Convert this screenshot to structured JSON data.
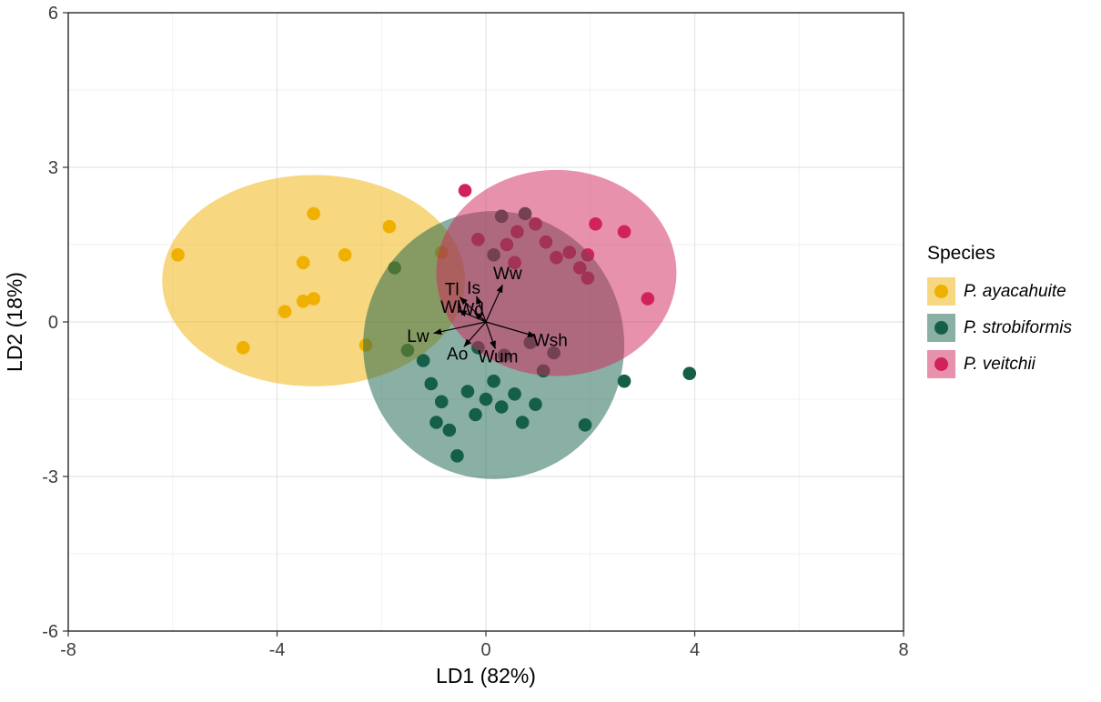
{
  "chart_data": {
    "type": "scatter",
    "title": "",
    "xlabel": "LD1 (82%)",
    "ylabel": "LD2 (18%)",
    "xlim": [
      -8,
      8
    ],
    "ylim": [
      -6,
      6
    ],
    "x_ticks": [
      -8,
      -4,
      0,
      4,
      8
    ],
    "y_ticks": [
      -6,
      -3,
      0,
      3,
      6
    ],
    "x_minor_ticks": [
      -6,
      -2,
      2,
      6
    ],
    "y_minor_ticks": [
      -4.5,
      -1.5,
      1.5,
      4.5
    ],
    "grid": true,
    "legend_position": "right",
    "legend_title": "Species",
    "series": [
      {
        "id": "ayacahuite",
        "name": "P. ayacahuite",
        "point_color": "#EFB000",
        "ellipse": {
          "cx": -3.3,
          "cy": 0.8,
          "rx": 2.9,
          "ry": 2.05
        },
        "points": [
          [
            -5.9,
            1.3
          ],
          [
            -4.65,
            -0.5
          ],
          [
            -3.85,
            0.2
          ],
          [
            -3.5,
            0.4
          ],
          [
            -3.3,
            0.45
          ],
          [
            -3.5,
            1.15
          ],
          [
            -3.3,
            2.1
          ],
          [
            -2.7,
            1.3
          ],
          [
            -1.85,
            1.85
          ],
          [
            -2.3,
            -0.45
          ],
          [
            -0.85,
            1.35
          ]
        ]
      },
      {
        "id": "strobiformis",
        "name": "P. strobiformis",
        "point_color": "#155F49",
        "ellipse": {
          "cx": 0.15,
          "cy": -0.45,
          "rx": 2.5,
          "ry": 2.6
        },
        "points": [
          [
            -1.75,
            1.05
          ],
          [
            -1.5,
            -0.55
          ],
          [
            -1.2,
            -0.75
          ],
          [
            -1.05,
            -1.2
          ],
          [
            -0.85,
            -1.55
          ],
          [
            -0.95,
            -1.95
          ],
          [
            -0.7,
            -2.1
          ],
          [
            -0.55,
            -2.6
          ],
          [
            -0.35,
            -1.35
          ],
          [
            -0.2,
            -1.8
          ],
          [
            0.0,
            -1.5
          ],
          [
            0.15,
            -1.15
          ],
          [
            0.3,
            -1.65
          ],
          [
            0.55,
            -1.4
          ],
          [
            0.7,
            -1.95
          ],
          [
            0.95,
            -1.6
          ],
          [
            1.1,
            -0.95
          ],
          [
            1.3,
            -0.6
          ],
          [
            1.9,
            -2.0
          ],
          [
            2.65,
            -1.15
          ],
          [
            3.9,
            -1.0
          ],
          [
            0.35,
            -0.65
          ],
          [
            -0.15,
            -0.5
          ],
          [
            0.85,
            -0.4
          ],
          [
            0.3,
            2.05
          ],
          [
            0.75,
            2.1
          ],
          [
            0.15,
            1.3
          ]
        ]
      },
      {
        "id": "veitchii",
        "name": "P. veitchii",
        "point_color": "#D1235A",
        "ellipse": {
          "cx": 1.35,
          "cy": 0.95,
          "rx": 2.3,
          "ry": 2.0
        },
        "points": [
          [
            -0.4,
            2.55
          ],
          [
            -0.15,
            1.6
          ],
          [
            0.4,
            1.5
          ],
          [
            0.6,
            1.75
          ],
          [
            0.95,
            1.9
          ],
          [
            1.15,
            1.55
          ],
          [
            1.35,
            1.25
          ],
          [
            1.6,
            1.35
          ],
          [
            1.8,
            1.05
          ],
          [
            1.95,
            1.3
          ],
          [
            2.1,
            1.9
          ],
          [
            2.65,
            1.75
          ],
          [
            1.95,
            0.85
          ],
          [
            3.1,
            0.45
          ],
          [
            0.55,
            1.15
          ]
        ]
      }
    ],
    "arrows": [
      {
        "label": "Ww",
        "x": 0.32,
        "y": 0.72
      },
      {
        "label": "Tl",
        "x": -0.5,
        "y": 0.48
      },
      {
        "label": "Is",
        "x": -0.18,
        "y": 0.5
      },
      {
        "label": "Wl",
        "x": -0.52,
        "y": 0.22
      },
      {
        "label": "Wd",
        "x": -0.22,
        "y": 0.18
      },
      {
        "label": "Lw",
        "x": -1.0,
        "y": -0.22
      },
      {
        "label": "Ao",
        "x": -0.42,
        "y": -0.48
      },
      {
        "label": "Wum",
        "x": 0.18,
        "y": -0.52
      },
      {
        "label": "Wsh",
        "x": 0.95,
        "y": -0.28
      }
    ]
  },
  "legend": {
    "title": "Species",
    "items": [
      {
        "label": "P. ayacahuite",
        "dot_color": "#EFB000",
        "key_fill": "#F7D780"
      },
      {
        "label": "P. strobiformis",
        "dot_color": "#155F49",
        "key_fill": "#8AAFA4"
      },
      {
        "label": "P. veitchii",
        "dot_color": "#D1235A",
        "key_fill": "#E891AC"
      }
    ]
  }
}
